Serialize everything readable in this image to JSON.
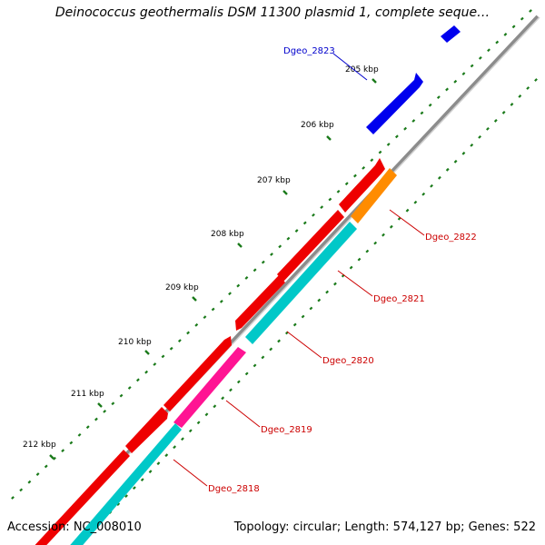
{
  "title": "Deinococcus geothermalis DSM 11300 plasmid 1, complete seque…",
  "accession": "Accession: NC_008010",
  "topology": "Topology: circular; Length: 574,127 bp; Genes: 522",
  "ticks": [
    "205 kbp",
    "206 kbp",
    "207 kbp",
    "208 kbp",
    "209 kbp",
    "210 kbp",
    "211 kbp",
    "212 kbp"
  ],
  "genes": [
    {
      "label": "Dgeo_2823",
      "color": "#0000cc"
    },
    {
      "label": "Dgeo_2822",
      "color": "#cc0000"
    },
    {
      "label": "Dgeo_2821",
      "color": "#cc0000"
    },
    {
      "label": "Dgeo_2820",
      "color": "#cc0000"
    },
    {
      "label": "Dgeo_2819",
      "color": "#cc0000"
    },
    {
      "label": "Dgeo_2818",
      "color": "#cc0000"
    }
  ],
  "colors": {
    "backbone": "#8c8c8c",
    "blue": "#0000ee",
    "red": "#ee0000",
    "orange": "#ff8c00",
    "cyan": "#00c8c8",
    "magenta": "#ff1493",
    "green_dots": "#1a7a1a"
  }
}
